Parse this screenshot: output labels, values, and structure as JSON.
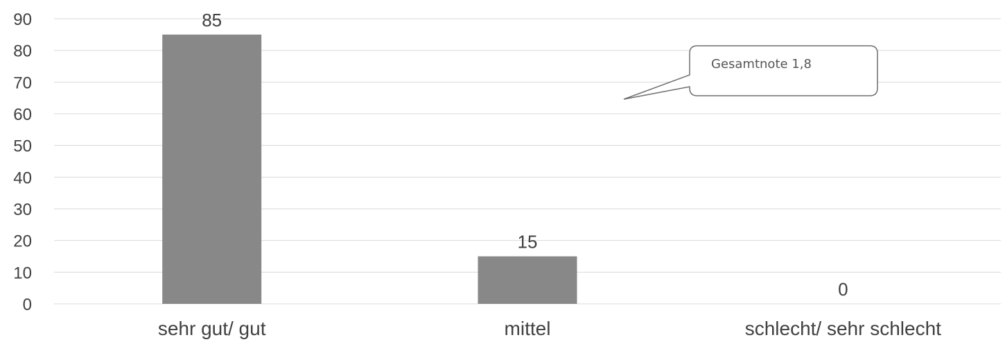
{
  "chart_data": {
    "type": "bar",
    "title": "",
    "xlabel": "",
    "ylabel": "",
    "categories": [
      "sehr gut/ gut",
      "mittel",
      "schlecht/ sehr schlecht"
    ],
    "values": [
      85,
      15,
      0
    ],
    "value_labels": [
      "85",
      "15",
      "0"
    ],
    "ylim": [
      0,
      90
    ],
    "yticks": [
      0,
      10,
      20,
      30,
      40,
      50,
      60,
      70,
      80,
      90
    ],
    "grid": true,
    "legend": "none",
    "bar_color": "#888888",
    "grid_color": "#d9d9d9",
    "annotation": {
      "text": "Gesamtnote 1,8"
    }
  }
}
